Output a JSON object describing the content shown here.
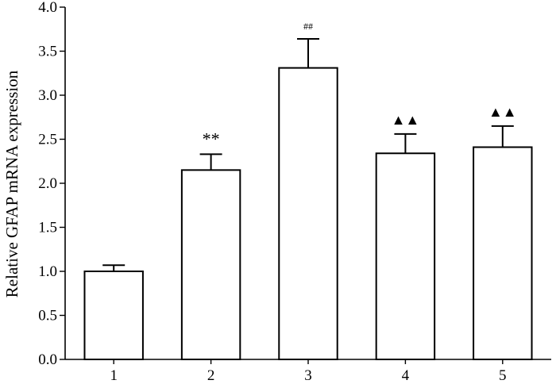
{
  "chart_data": {
    "type": "bar",
    "categories": [
      "1",
      "2",
      "3",
      "4",
      "5"
    ],
    "values": [
      1.0,
      2.15,
      3.31,
      2.34,
      2.41
    ],
    "errors": [
      0.07,
      0.18,
      0.33,
      0.22,
      0.24
    ],
    "annotations": [
      "",
      "**",
      "##",
      "▲▲",
      "▲▲"
    ],
    "title": "",
    "xlabel": "",
    "ylabel": "Relative GFAP mRNA expression",
    "ylim": [
      0,
      4.0
    ],
    "yticks": [
      "0.0",
      "0.5",
      "1.0",
      "1.5",
      "2.0",
      "2.5",
      "3.0",
      "3.5",
      "4.0"
    ],
    "grid": false,
    "legend": "none"
  }
}
